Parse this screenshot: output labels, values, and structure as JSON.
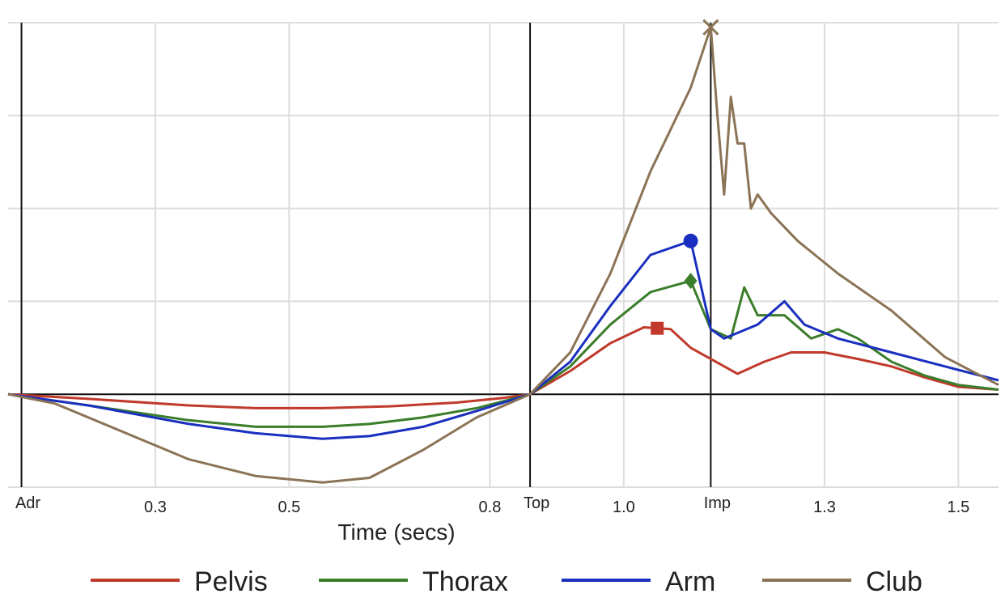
{
  "chart_data": {
    "type": "line",
    "title": "",
    "xlabel": "Time (secs)",
    "ylabel": "",
    "grid": true,
    "legend_position": "bottom",
    "xlim": [
      0.08,
      1.56
    ],
    "ylim": [
      -1.0,
      4.0
    ],
    "x_ticks": [
      0.3,
      0.5,
      0.8,
      1.0,
      1.3,
      1.5
    ],
    "x_tick_labels": [
      "0.3",
      "0.5",
      "0.8",
      "1.0",
      "1.3",
      "1.5"
    ],
    "y_gridlines": [
      -1,
      0,
      1,
      2,
      3,
      4
    ],
    "events": [
      {
        "label": "Adr",
        "x": 0.1
      },
      {
        "label": "Top",
        "x": 0.86
      },
      {
        "label": "Imp",
        "x": 1.13
      }
    ],
    "series": [
      {
        "name": "Pelvis",
        "color": "#c0392b",
        "marker": "square",
        "marker_x": 1.05,
        "x": [
          0.08,
          0.2,
          0.35,
          0.45,
          0.55,
          0.65,
          0.75,
          0.82,
          0.86,
          0.92,
          0.98,
          1.03,
          1.07,
          1.1,
          1.13,
          1.17,
          1.21,
          1.25,
          1.3,
          1.35,
          1.4,
          1.45,
          1.5,
          1.56
        ],
        "y": [
          0.0,
          -0.05,
          -0.12,
          -0.15,
          -0.15,
          -0.13,
          -0.09,
          -0.04,
          0.0,
          0.25,
          0.55,
          0.72,
          0.7,
          0.5,
          0.38,
          0.22,
          0.35,
          0.45,
          0.45,
          0.38,
          0.3,
          0.18,
          0.08,
          0.05
        ]
      },
      {
        "name": "Thorax",
        "color": "#3a7d2a",
        "marker": "diamond",
        "marker_x": 1.1,
        "x": [
          0.08,
          0.2,
          0.35,
          0.45,
          0.55,
          0.62,
          0.7,
          0.78,
          0.86,
          0.92,
          0.98,
          1.04,
          1.1,
          1.13,
          1.16,
          1.18,
          1.2,
          1.24,
          1.28,
          1.32,
          1.35,
          1.4,
          1.45,
          1.5,
          1.56
        ],
        "y": [
          0.0,
          -0.12,
          -0.28,
          -0.35,
          -0.35,
          -0.32,
          -0.25,
          -0.15,
          0.0,
          0.3,
          0.75,
          1.1,
          1.22,
          0.7,
          0.6,
          1.15,
          0.85,
          0.85,
          0.6,
          0.7,
          0.6,
          0.35,
          0.2,
          0.1,
          0.05
        ]
      },
      {
        "name": "Arm",
        "color": "#1a2fbf",
        "marker": "circle",
        "marker_x": 1.1,
        "x": [
          0.08,
          0.2,
          0.35,
          0.45,
          0.55,
          0.62,
          0.7,
          0.78,
          0.86,
          0.92,
          0.98,
          1.04,
          1.1,
          1.13,
          1.15,
          1.2,
          1.24,
          1.27,
          1.32,
          1.4,
          1.48,
          1.56
        ],
        "y": [
          0.0,
          -0.12,
          -0.32,
          -0.42,
          -0.48,
          -0.45,
          -0.35,
          -0.18,
          0.0,
          0.35,
          0.95,
          1.5,
          1.65,
          0.7,
          0.6,
          0.75,
          1.0,
          0.75,
          0.6,
          0.45,
          0.3,
          0.15
        ]
      },
      {
        "name": "Club",
        "color": "#8b7355",
        "marker": "x",
        "marker_x": 1.13,
        "x": [
          0.08,
          0.15,
          0.25,
          0.35,
          0.45,
          0.55,
          0.62,
          0.7,
          0.78,
          0.86,
          0.92,
          0.98,
          1.04,
          1.1,
          1.13,
          1.14,
          1.15,
          1.16,
          1.17,
          1.18,
          1.19,
          1.2,
          1.22,
          1.26,
          1.32,
          1.4,
          1.48,
          1.56
        ],
        "y": [
          0.0,
          -0.1,
          -0.4,
          -0.7,
          -0.88,
          -0.95,
          -0.9,
          -0.6,
          -0.25,
          0.0,
          0.45,
          1.3,
          2.4,
          3.3,
          3.95,
          3.0,
          2.15,
          3.2,
          2.7,
          2.7,
          2.0,
          2.15,
          1.95,
          1.65,
          1.3,
          0.9,
          0.4,
          0.1
        ]
      }
    ]
  }
}
